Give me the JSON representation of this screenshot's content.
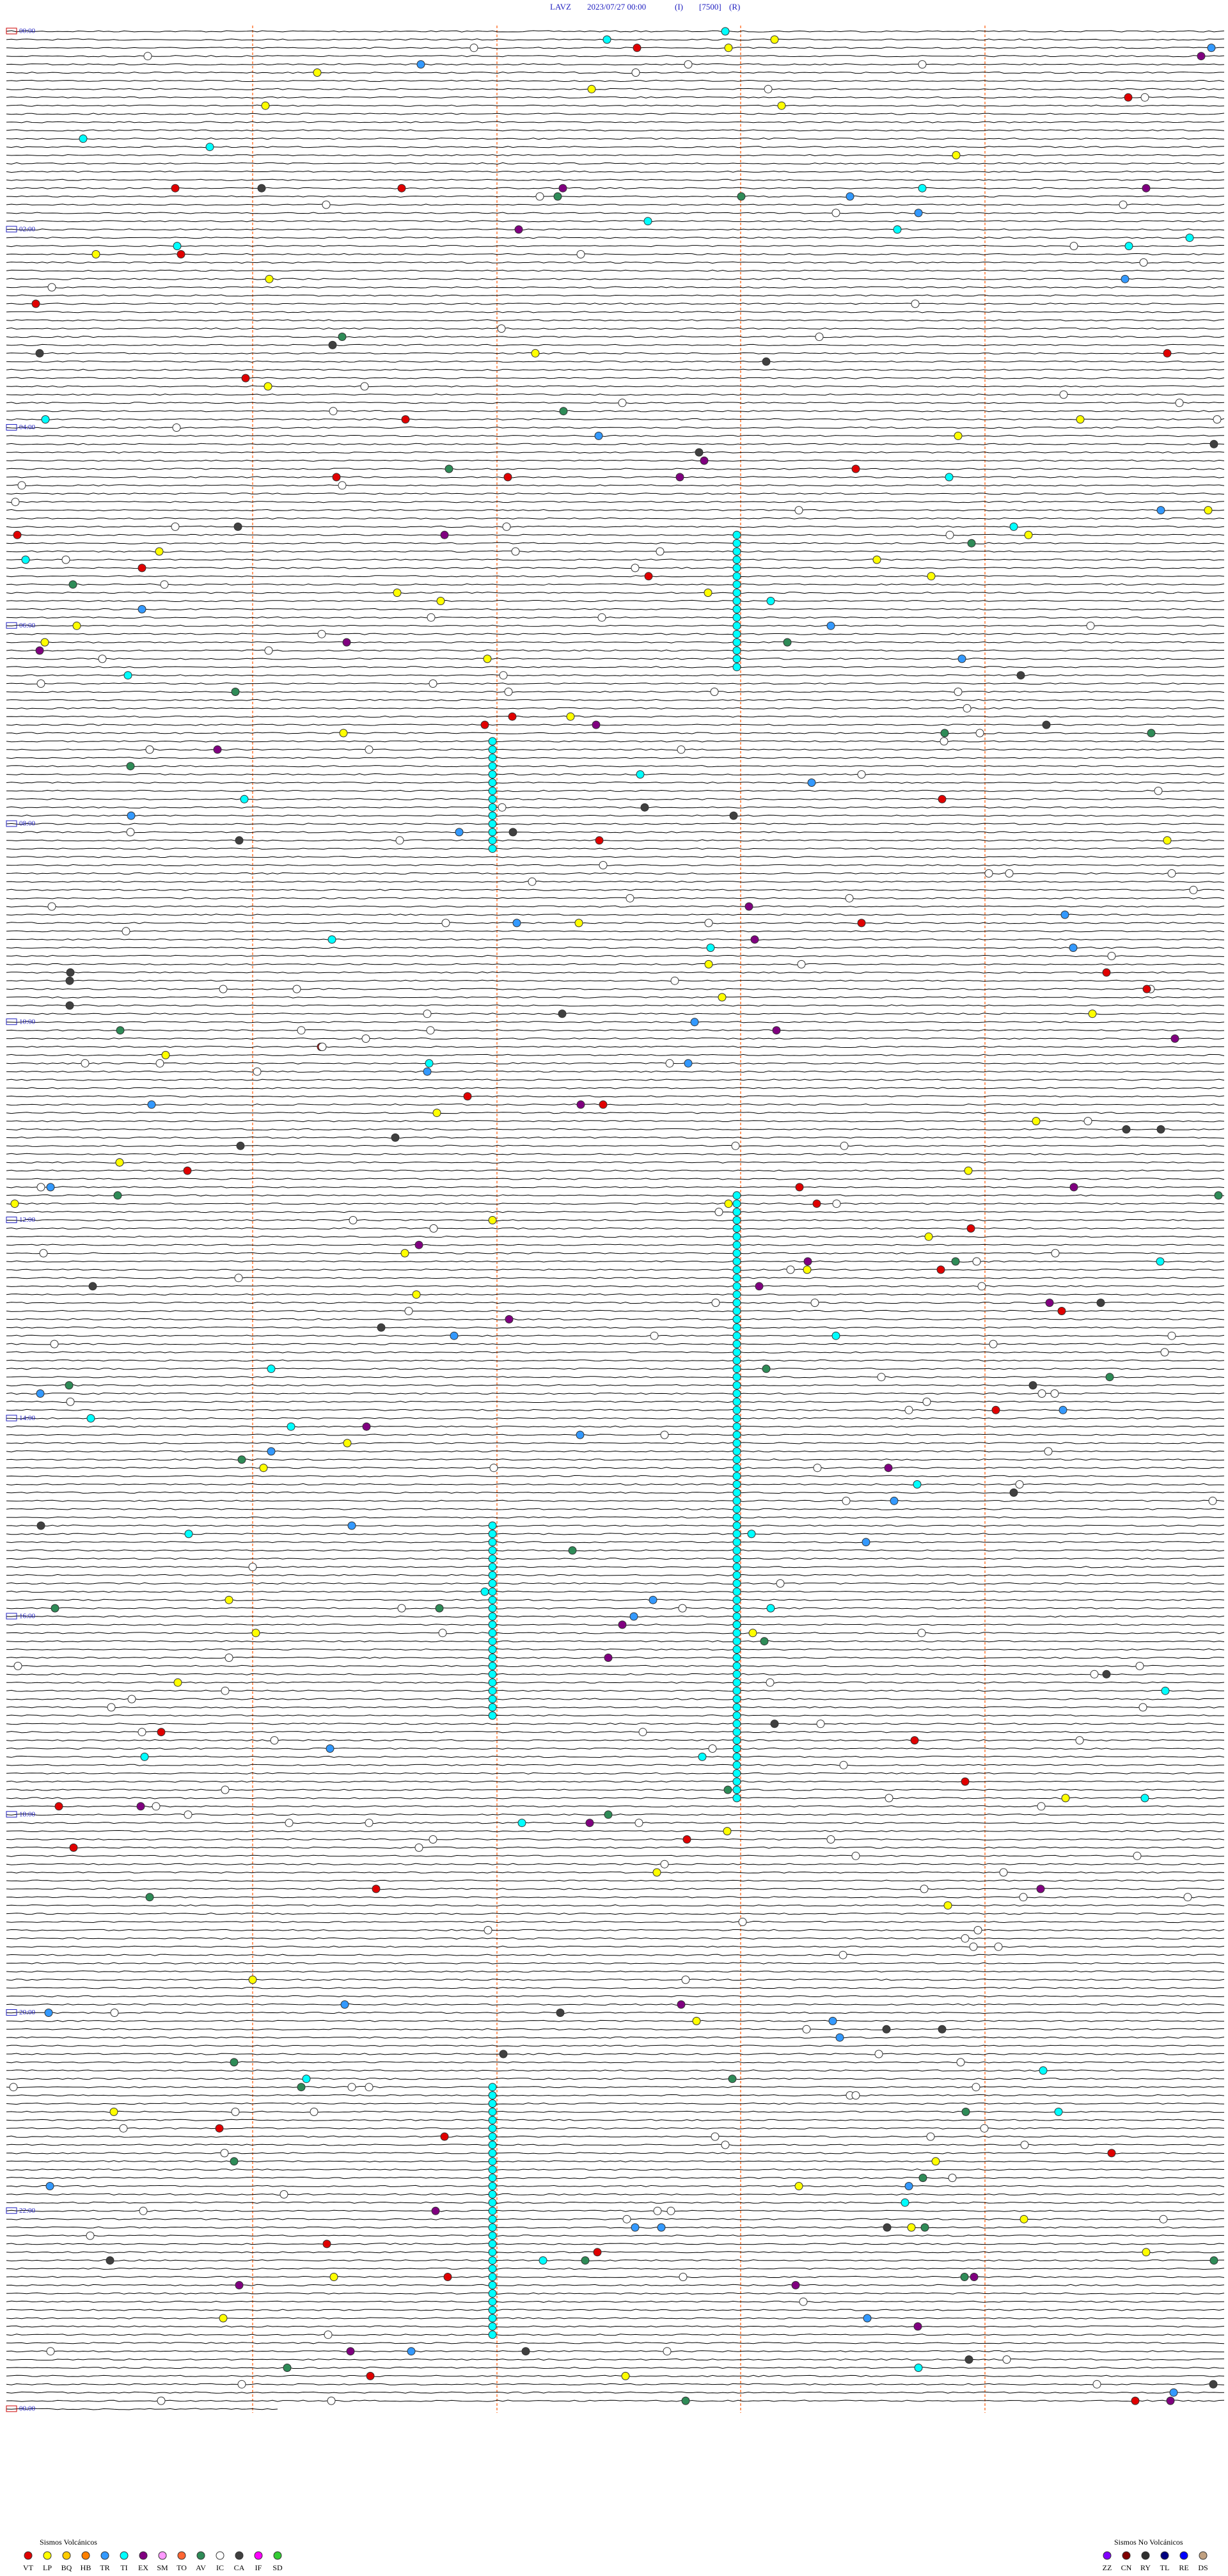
{
  "header": {
    "station": "LAVZ",
    "datetime": "2023/07/27 00:00",
    "component": "(I)",
    "gain": "[7500]",
    "mode": "(R)"
  },
  "hour_labels": [
    "00:00",
    "02:00",
    "04:00",
    "06:00",
    "08:00",
    "10:00",
    "12:00",
    "14:00",
    "16:00",
    "18:00",
    "20:00",
    "22:00",
    "00:00"
  ],
  "legend": {
    "volcanic": {
      "title": "Sismos Volcánicos",
      "items": [
        {
          "code": "VT",
          "color": "#e00000"
        },
        {
          "code": "LP",
          "color": "#ffff00"
        },
        {
          "code": "BQ",
          "color": "#ffcc00"
        },
        {
          "code": "HB",
          "color": "#ff8000"
        },
        {
          "code": "TR",
          "color": "#3399ff"
        },
        {
          "code": "TI",
          "color": "#00ffff"
        },
        {
          "code": "EX",
          "color": "#800080"
        },
        {
          "code": "SM",
          "color": "#ff99ff"
        },
        {
          "code": "TO",
          "color": "#ff6633"
        },
        {
          "code": "AV",
          "color": "#2e8b57"
        },
        {
          "code": "IC",
          "color": "#ffffff"
        },
        {
          "code": "CA",
          "color": "#404040"
        },
        {
          "code": "IF",
          "color": "#ff00ff"
        },
        {
          "code": "SD",
          "color": "#33cc33"
        }
      ]
    },
    "non_volcanic": {
      "title": "Sismos No Volcánicos",
      "items": [
        {
          "code": "ZZ",
          "color": "#8000ff"
        },
        {
          "code": "CN",
          "color": "#800000"
        },
        {
          "code": "RY",
          "color": "#303030"
        },
        {
          "code": "TL",
          "color": "#000080"
        },
        {
          "code": "RE",
          "color": "#0000ff"
        },
        {
          "code": "DS",
          "color": "#c0a080"
        }
      ]
    }
  }
}
